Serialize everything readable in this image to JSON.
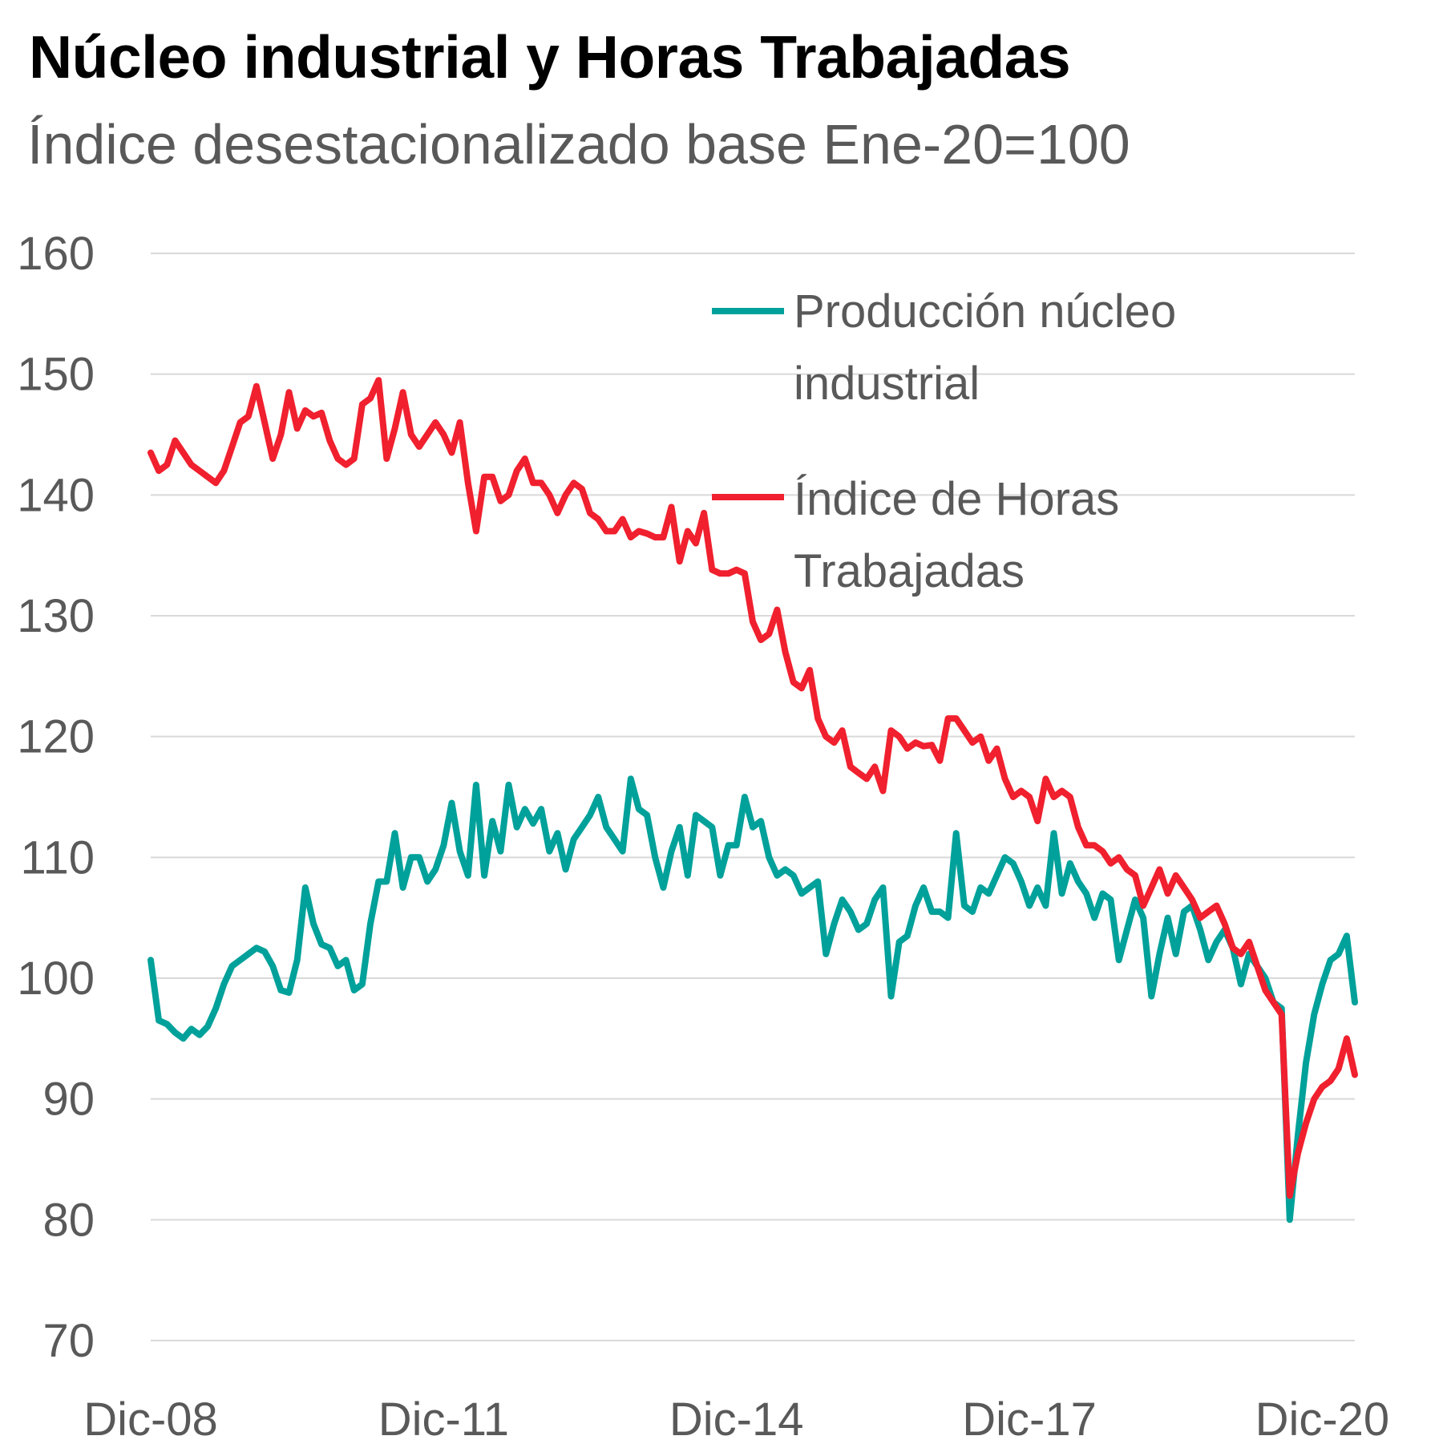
{
  "header": {
    "title": "Núcleo industrial y Horas Trabajadas",
    "subtitle": "Índice desestacionalizado base Ene-20=100"
  },
  "chart_data": {
    "type": "line",
    "title": "Núcleo industrial y Horas Trabajadas",
    "subtitle": "Índice desestacionalizado base Ene-20=100",
    "xlabel": "",
    "ylabel": "",
    "ylim": [
      70,
      160
    ],
    "yticks": [
      "160",
      "150",
      "140",
      "130",
      "120",
      "110",
      "100",
      "90",
      "80",
      "70"
    ],
    "x_start": "Dic-08",
    "x_end": "Mar-21",
    "frequency": "monthly",
    "xticks": [
      "Dic-08",
      "Dic-11",
      "Dic-14",
      "Dic-17",
      "Dic-20"
    ],
    "grid": "horizontal",
    "legend_position": "top-right",
    "series": [
      {
        "name": "Producción núcleo industrial",
        "color": "#00A19A",
        "values": [
          101.5,
          96.5,
          96.2,
          95.5,
          95.0,
          95.8,
          95.3,
          96.0,
          97.5,
          99.5,
          101.0,
          101.5,
          102.0,
          102.5,
          102.2,
          101.0,
          99.0,
          98.8,
          101.5,
          107.5,
          104.5,
          102.8,
          102.5,
          101.0,
          101.5,
          99.0,
          99.5,
          104.5,
          108.0,
          108.0,
          112.0,
          107.5,
          110.0,
          110.0,
          108.0,
          109.0,
          111.0,
          114.5,
          110.5,
          108.5,
          116.0,
          108.5,
          113.0,
          110.5,
          116.0,
          112.5,
          114.0,
          112.8,
          114.0,
          110.5,
          112.0,
          109.0,
          111.5,
          112.5,
          113.5,
          115.0,
          112.5,
          111.5,
          110.5,
          116.5,
          114.0,
          113.5,
          110.0,
          107.5,
          110.5,
          112.5,
          108.5,
          113.5,
          113.0,
          112.5,
          108.5,
          111.0,
          111.0,
          115.0,
          112.5,
          113.0,
          110.0,
          108.5,
          109.0,
          108.5,
          107.0,
          107.5,
          108.0,
          102.0,
          104.5,
          106.5,
          105.5,
          104.0,
          104.5,
          106.5,
          107.5,
          98.5,
          103.0,
          103.5,
          106.0,
          107.5,
          105.5,
          105.5,
          105.0,
          112.0,
          106.0,
          105.5,
          107.5,
          107.0,
          108.5,
          110.0,
          109.5,
          108.0,
          106.0,
          107.5,
          106.0,
          112.0,
          107.0,
          109.5,
          108.0,
          107.0,
          105.0,
          107.0,
          106.5,
          101.5,
          104.0,
          106.5,
          105.0,
          98.5,
          102.0,
          105.0,
          102.0,
          105.5,
          106.0,
          104.0,
          101.5,
          103.0,
          104.0,
          102.5,
          99.5,
          102.0,
          101.0,
          100.0,
          98.0,
          97.5,
          80.0,
          87.0,
          93.0,
          97.0,
          99.5,
          101.5,
          102.0,
          103.5,
          98.0
        ]
      },
      {
        "name": "Índice de Horas Trabajadas",
        "color": "#F0202E",
        "values": [
          143.5,
          142.0,
          142.5,
          144.5,
          143.5,
          142.5,
          142.0,
          141.5,
          141.0,
          142.0,
          144.0,
          146.0,
          146.5,
          149.0,
          146.0,
          143.0,
          145.0,
          148.5,
          145.5,
          147.0,
          146.5,
          146.8,
          144.5,
          143.0,
          142.5,
          143.0,
          147.5,
          148.0,
          149.5,
          143.0,
          145.5,
          148.5,
          145.0,
          144.0,
          145.0,
          146.0,
          145.0,
          143.5,
          146.0,
          141.0,
          137.0,
          141.5,
          141.5,
          139.5,
          140.0,
          142.0,
          143.0,
          141.0,
          141.0,
          140.0,
          138.5,
          140.0,
          141.0,
          140.5,
          138.5,
          138.0,
          137.0,
          137.0,
          138.0,
          136.5,
          137.0,
          136.8,
          136.5,
          136.5,
          139.0,
          134.5,
          137.0,
          136.0,
          138.5,
          133.8,
          133.5,
          133.5,
          133.8,
          133.5,
          129.5,
          128.0,
          128.5,
          130.5,
          127.0,
          124.5,
          124.0,
          125.5,
          121.5,
          120.0,
          119.5,
          120.5,
          117.5,
          117.0,
          116.5,
          117.5,
          115.5,
          120.5,
          120.0,
          119.0,
          119.5,
          119.2,
          119.3,
          118.0,
          121.5,
          121.5,
          120.5,
          119.5,
          120.0,
          118.0,
          119.0,
          116.5,
          115.0,
          115.5,
          115.0,
          113.0,
          116.5,
          115.0,
          115.5,
          115.0,
          112.5,
          111.0,
          111.0,
          110.5,
          109.5,
          110.0,
          109.0,
          108.5,
          106.0,
          107.5,
          109.0,
          107.0,
          108.5,
          107.5,
          106.5,
          105.0,
          105.5,
          106.0,
          104.5,
          102.5,
          102.0,
          103.0,
          101.0,
          99.0,
          98.0,
          97.0,
          82.0,
          85.5,
          88.0,
          90.0,
          91.0,
          91.5,
          92.5,
          95.0,
          92.0
        ]
      }
    ]
  }
}
